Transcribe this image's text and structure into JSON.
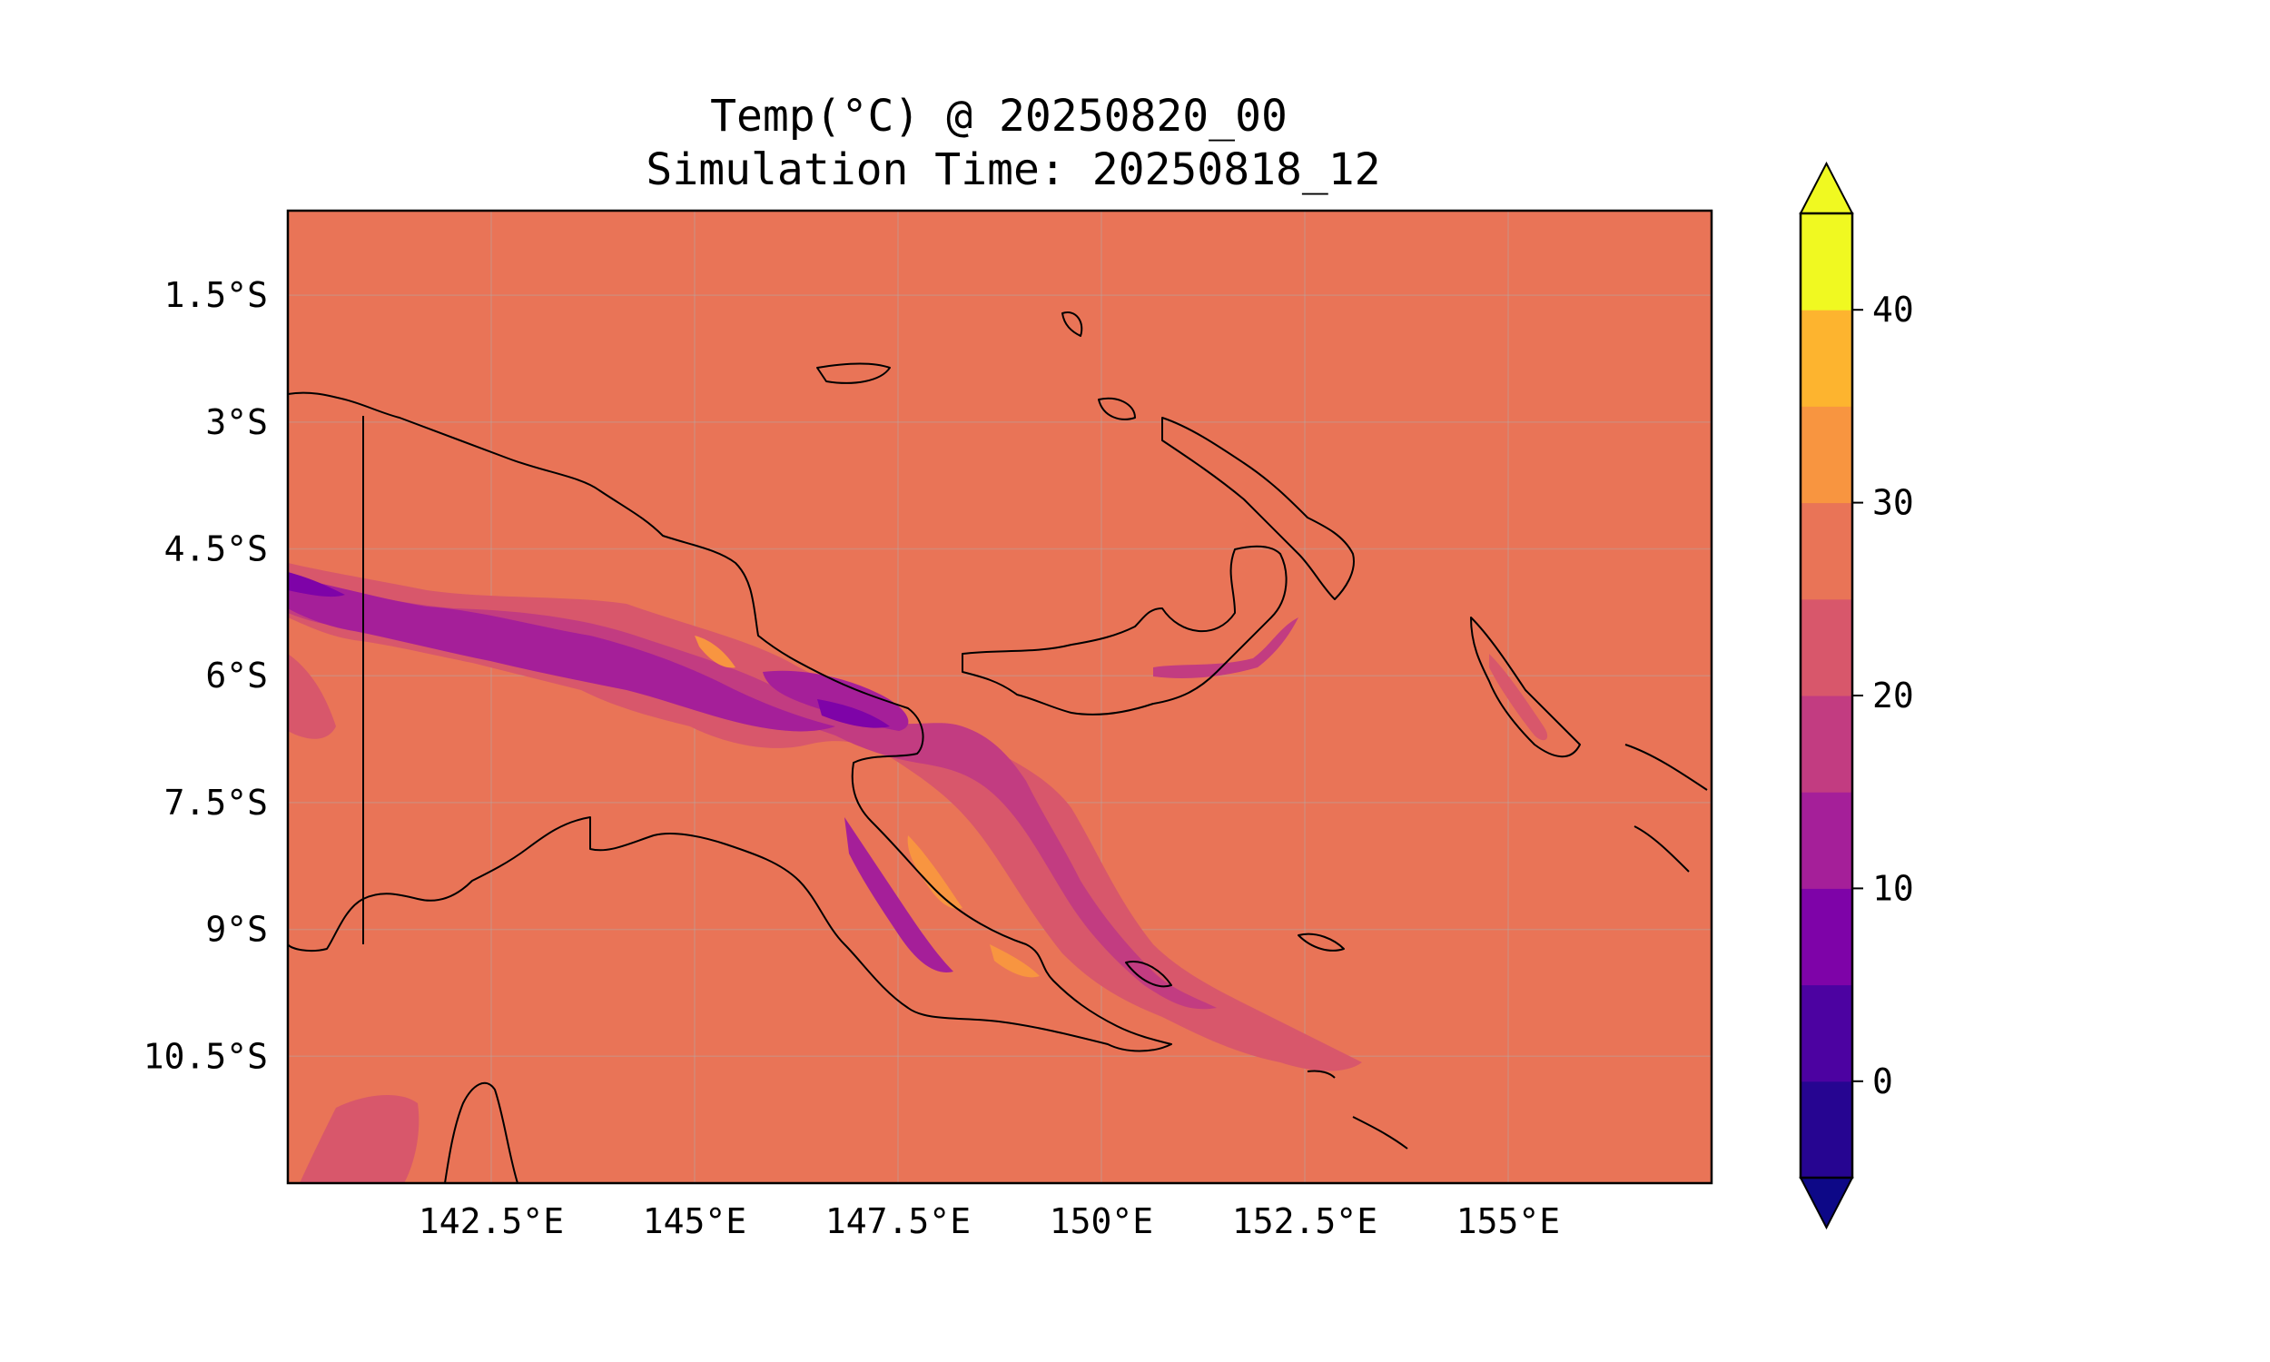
{
  "title": {
    "line1": "Temp(°C) @ 20250820_00",
    "line2": "Simulation Time: 20250818_12"
  },
  "map": {
    "lon_range": [
      140.0,
      157.5
    ],
    "lat_range": [
      -12.0,
      -0.5
    ],
    "gridlines": true,
    "lon_ticks": [
      {
        "value": 142.5,
        "label": "142.5°E"
      },
      {
        "value": 145.0,
        "label": "145°E"
      },
      {
        "value": 147.5,
        "label": "147.5°E"
      },
      {
        "value": 150.0,
        "label": "150°E"
      },
      {
        "value": 152.5,
        "label": "152.5°E"
      },
      {
        "value": 155.0,
        "label": "155°E"
      }
    ],
    "lat_ticks": [
      {
        "value": -1.5,
        "label": "1.5°S"
      },
      {
        "value": -3.0,
        "label": "3°S"
      },
      {
        "value": -4.5,
        "label": "4.5°S"
      },
      {
        "value": -6.0,
        "label": "6°S"
      },
      {
        "value": -7.5,
        "label": "7.5°S"
      },
      {
        "value": -9.0,
        "label": "9°S"
      },
      {
        "value": -10.5,
        "label": "10.5°S"
      }
    ],
    "background_color": "#e97457",
    "coastline_color": "#000000"
  },
  "colorbar": {
    "levels": [
      -5,
      0,
      5,
      10,
      15,
      20,
      25,
      30,
      35,
      40,
      45
    ],
    "colors": [
      "#260591",
      "#4c02a1",
      "#7e03a8",
      "#a51f99",
      "#c23c81",
      "#d8576b",
      "#e97457",
      "#f89540",
      "#fdb42f",
      "#f0f921"
    ],
    "under_color": "#0d0887",
    "over_color": "#f0f921",
    "ticks": [
      {
        "value": 0,
        "label": "0"
      },
      {
        "value": 10,
        "label": "10"
      },
      {
        "value": 20,
        "label": "20"
      },
      {
        "value": 30,
        "label": "30"
      },
      {
        "value": 40,
        "label": "40"
      }
    ]
  }
}
